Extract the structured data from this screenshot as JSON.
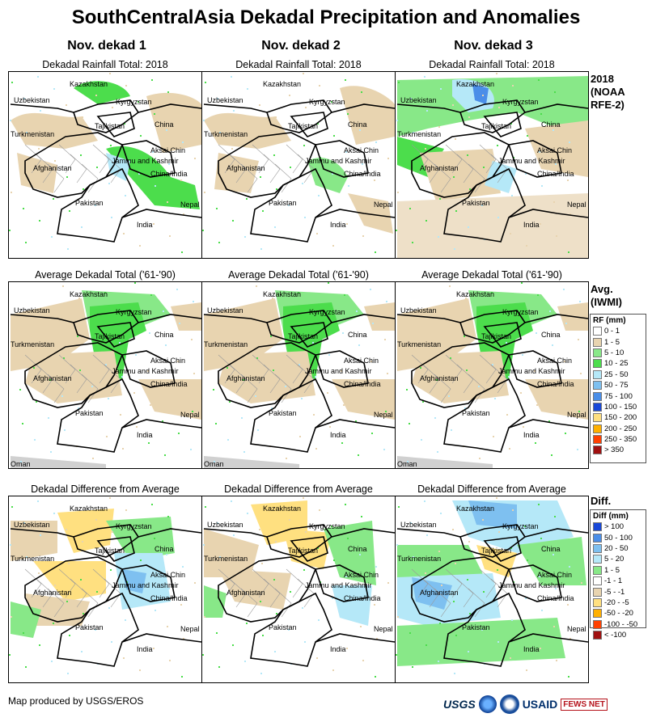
{
  "title": "SouthCentralAsia Dekadal Precipitation and Anomalies",
  "columns": [
    "Nov. dekad 1",
    "Nov. dekad 2",
    "Nov. dekad 3"
  ],
  "row_titles": {
    "rainfall": "Dekadal Rainfall Total: 2018",
    "average": "Average Dekadal Total ('61-'90)",
    "difference": "Dekadal Difference from Average"
  },
  "side_labels": {
    "rainfall": [
      "2018",
      "(NOAA",
      "RFE-2)"
    ],
    "average": [
      "Avg.",
      "(IWMI)"
    ],
    "difference": [
      "Diff."
    ]
  },
  "map_labels": {
    "kazakhstan": "Kazakhstan",
    "uzbekistan": "Uzbekistan",
    "kyrgyzstan": "Kyrgyzstan",
    "turkmenistan": "Turkmenistan",
    "tajikistan": "Tajikistan",
    "china": "China",
    "afghanistan": "Afghanistan",
    "aksai_chin": "Aksai Chin",
    "jammu_kashmir": "Jammu and Kashmir",
    "china_india": "China/India",
    "pakistan": "Pakistan",
    "nepal": "Nepal",
    "india": "India",
    "oman": "Oman"
  },
  "legend_rf": {
    "title": "RF (mm)",
    "items": [
      {
        "label": "0 - 1",
        "color": "#ffffff"
      },
      {
        "label": "1 - 5",
        "color": "#e8d4b0"
      },
      {
        "label": "5 - 10",
        "color": "#88e888"
      },
      {
        "label": "10 - 25",
        "color": "#4cdd4c"
      },
      {
        "label": "25 - 50",
        "color": "#b5e8f8"
      },
      {
        "label": "50 - 75",
        "color": "#7ec0f0"
      },
      {
        "label": "75 - 100",
        "color": "#4a8ee8"
      },
      {
        "label": "100 - 150",
        "color": "#1848d8"
      },
      {
        "label": "150 - 200",
        "color": "#ffe080"
      },
      {
        "label": "200 - 250",
        "color": "#ffb000"
      },
      {
        "label": "250 - 350",
        "color": "#ff4000"
      },
      {
        "label": "> 350",
        "color": "#a01010"
      }
    ]
  },
  "legend_diff": {
    "title": "Diff (mm)",
    "items": [
      {
        "label": "> 100",
        "color": "#1848d8"
      },
      {
        "label": "50 - 100",
        "color": "#4a8ee8"
      },
      {
        "label": "20 - 50",
        "color": "#7ec0f0"
      },
      {
        "label": "5 - 20",
        "color": "#b5e8f8"
      },
      {
        "label": "1 - 5",
        "color": "#88e888"
      },
      {
        "label": "-1 - 1",
        "color": "#ffffff"
      },
      {
        "label": "-5 - -1",
        "color": "#e8d4b0"
      },
      {
        "label": "-20 - -5",
        "color": "#ffe080"
      },
      {
        "label": "-50 - -20",
        "color": "#ffb000"
      },
      {
        "label": "-100 - -50",
        "color": "#ff4000"
      },
      {
        "label": "< -100",
        "color": "#a01010"
      }
    ]
  },
  "footer": "Map produced by USGS/EROS",
  "logos": {
    "usgs": "USGS",
    "usaid": "USAID",
    "fews": "FEWS NET"
  }
}
